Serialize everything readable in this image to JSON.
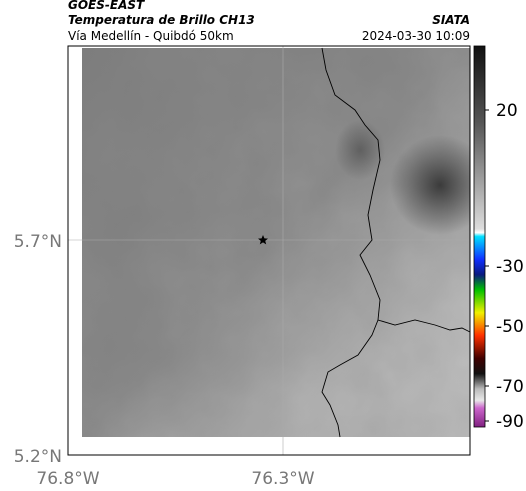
{
  "header": {
    "source": "GOES-EAST",
    "title": "Temperatura de Brillo CH13",
    "subtitle": "Vía Medellín - Quibdó 50km",
    "agency": "SIATA",
    "datetime": "2024-03-30 10:09"
  },
  "map": {
    "lat_labels": [
      "5.7°N",
      "5.2°N"
    ],
    "lon_labels": [
      "76.8°W",
      "76.3°W"
    ]
  },
  "colorbar": {
    "ticks": [
      20,
      -30,
      -50,
      -70,
      -90
    ]
  }
}
